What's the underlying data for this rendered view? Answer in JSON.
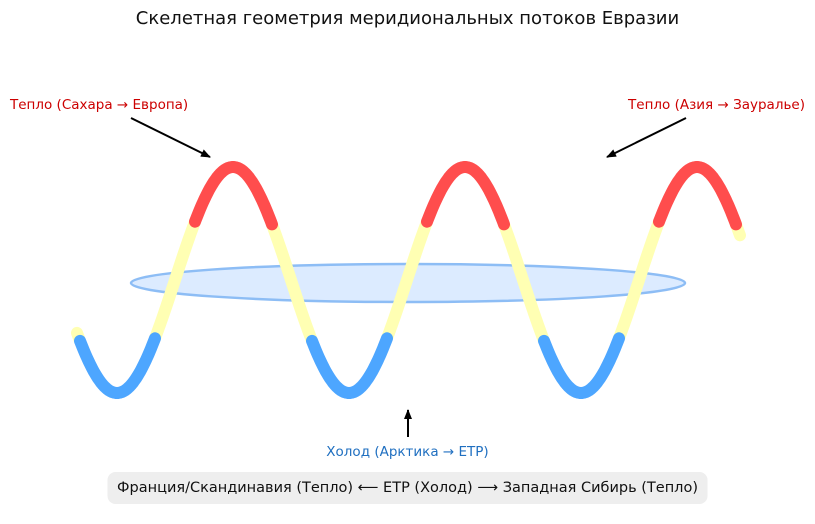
{
  "title": "Скелетная геометрия меридиональных потоков Евразии",
  "labels": {
    "warm_left": "Тепло (Сахара → Европа)",
    "warm_right": "Тепло (Азия → Зауралье)",
    "cold_bottom": "Холод (Арктика → ЕТР)"
  },
  "footer": "Франция/Скандинавия (Тепло) ⟵ ЕТР (Холод) ⟶ Западная Сибирь (Тепло)",
  "colors": {
    "warm_segment": "#ff4d4d",
    "transition_segment": "#ffffb3",
    "cold_segment": "#4da6ff",
    "vortex_fill": "#dcebff",
    "vortex_stroke": "#8dbdf5",
    "warm_text": "#cc0000",
    "cold_text": "#1f6fc0"
  }
}
